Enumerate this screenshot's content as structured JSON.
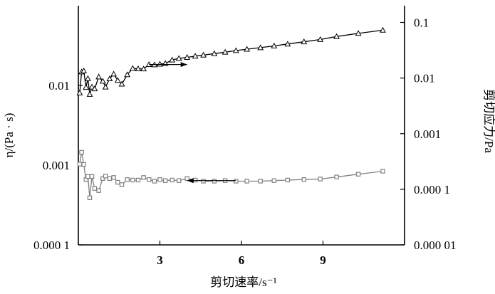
{
  "chart_data": {
    "type": "line",
    "xlabel": "剪切速率/s⁻¹",
    "ylabel_left": "η/(Pa · s)",
    "ylabel_right": "剪切应力/Pa",
    "x_scale": "linear",
    "xlim": [
      0,
      12
    ],
    "x_ticks": [
      3,
      6,
      9
    ],
    "x_tick_labels": [
      "3",
      "6",
      "9"
    ],
    "y_left_scale": "log",
    "y_left_lim": [
      0.0001,
      0.1
    ],
    "y_left_ticks": [
      0.0001,
      0.001,
      0.01
    ],
    "y_left_tick_labels": [
      "0.000 1",
      "0.001",
      "0.01"
    ],
    "y_right_scale": "log",
    "y_right_lim": [
      1e-05,
      0.2
    ],
    "y_right_ticks": [
      1e-05,
      0.0001,
      0.001,
      0.01,
      0.1
    ],
    "y_right_tick_labels": [
      "0.000 01",
      "0.000 1",
      "0.001",
      "0.01",
      "0.1"
    ],
    "grid": false,
    "series": [
      {
        "axis": "right",
        "marker": "triangle",
        "color": "#000000",
        "x": [
          0.05,
          0.12,
          0.2,
          0.28,
          0.35,
          0.42,
          0.5,
          0.6,
          0.75,
          0.9,
          1.0,
          1.15,
          1.3,
          1.45,
          1.6,
          1.8,
          2.0,
          2.2,
          2.4,
          2.6,
          2.8,
          3.0,
          3.2,
          3.45,
          3.7,
          4.0,
          4.3,
          4.6,
          5.0,
          5.4,
          5.8,
          6.2,
          6.7,
          7.2,
          7.7,
          8.3,
          8.9,
          9.5,
          10.3,
          11.2
        ],
        "values": [
          0.0054,
          0.0129,
          0.0135,
          0.0068,
          0.0098,
          0.0051,
          0.0069,
          0.0064,
          0.0105,
          0.0088,
          0.0069,
          0.0097,
          0.0118,
          0.0091,
          0.0078,
          0.0115,
          0.0149,
          0.0147,
          0.0146,
          0.0175,
          0.0173,
          0.0178,
          0.0183,
          0.0211,
          0.0226,
          0.0235,
          0.0248,
          0.0259,
          0.0275,
          0.0292,
          0.0312,
          0.033,
          0.0352,
          0.0378,
          0.0409,
          0.0449,
          0.0493,
          0.0558,
          0.0635,
          0.0725
        ]
      },
      {
        "axis": "left",
        "marker": "square",
        "color": "#808080",
        "x": [
          0.05,
          0.12,
          0.2,
          0.28,
          0.35,
          0.42,
          0.5,
          0.6,
          0.75,
          0.9,
          1.0,
          1.15,
          1.3,
          1.45,
          1.6,
          1.8,
          2.0,
          2.2,
          2.4,
          2.6,
          2.8,
          3.0,
          3.2,
          3.45,
          3.7,
          4.0,
          4.3,
          4.6,
          5.0,
          5.4,
          5.8,
          6.2,
          6.7,
          7.2,
          7.7,
          8.3,
          8.9,
          9.5,
          10.3,
          11.2
        ],
        "values": [
          0.00103,
          0.00145,
          0.00102,
          0.00066,
          0.00072,
          0.00039,
          0.00072,
          0.00051,
          0.00048,
          0.00068,
          0.00073,
          0.00068,
          0.0007,
          0.00061,
          0.00057,
          0.00066,
          0.00065,
          0.00065,
          0.0007,
          0.00066,
          0.00063,
          0.00066,
          0.00064,
          0.00065,
          0.00064,
          0.00068,
          0.00065,
          0.00063,
          0.00063,
          0.00064,
          0.00063,
          0.00063,
          0.00063,
          0.00064,
          0.00065,
          0.00066,
          0.00067,
          0.00071,
          0.00077,
          0.00084
        ]
      }
    ],
    "annotations": [
      {
        "type": "arrow",
        "direction": "right",
        "from": [
          2.6,
          0.0175
        ],
        "to": [
          4.0,
          0.0175
        ],
        "axis": "right"
      },
      {
        "type": "arrow",
        "direction": "left",
        "from": [
          5.8,
          0.00064
        ],
        "to": [
          4.0,
          0.00064
        ],
        "axis": "left"
      }
    ]
  }
}
